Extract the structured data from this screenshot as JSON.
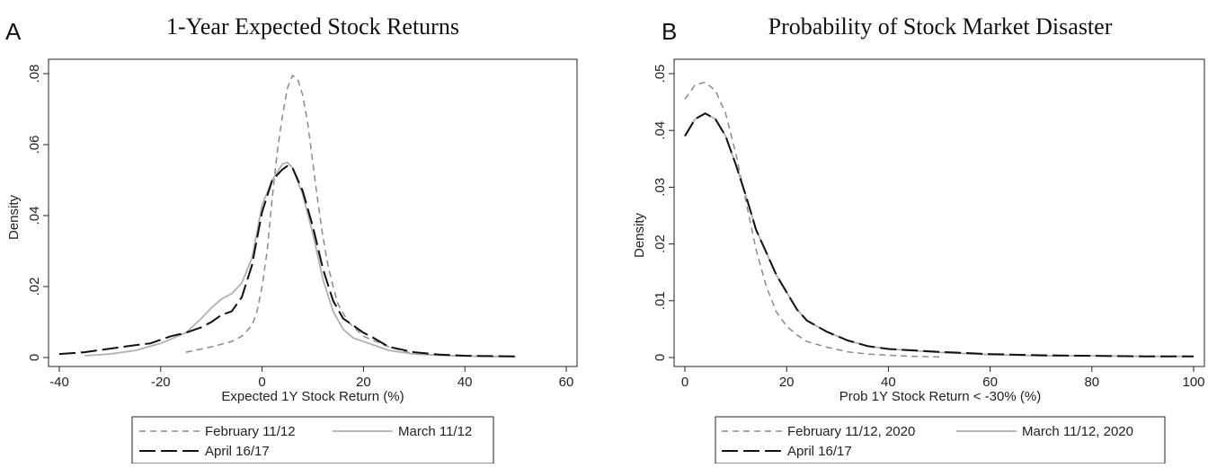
{
  "colors": {
    "february": "#8a8a8a",
    "march": "#b0b0b0",
    "april": "#111111"
  },
  "chart_data": [
    {
      "type": "line",
      "panel_letter": "A",
      "title": "1-Year Expected Stock Returns",
      "xlabel": "Expected 1Y Stock Return (%)",
      "ylabel": "Density",
      "xlim": [
        -40,
        60
      ],
      "ylim": [
        0,
        0.08
      ],
      "xticks": [
        "-40",
        "-20",
        "0",
        "20",
        "40",
        "60"
      ],
      "yticks": [
        "0",
        ".02",
        ".04",
        ".06",
        ".08"
      ],
      "grid": false,
      "legend_position": "bottom",
      "series": [
        {
          "name": "February 11/12",
          "style": "short-dash",
          "x": [
            -15,
            -10,
            -6,
            -4,
            -2,
            -1,
            0,
            1,
            2,
            3,
            4,
            5,
            6,
            7,
            8,
            9,
            10,
            11,
            12,
            13,
            14,
            15,
            17,
            20,
            25,
            30
          ],
          "y": [
            0.0015,
            0.003,
            0.0045,
            0.006,
            0.009,
            0.013,
            0.02,
            0.03,
            0.045,
            0.058,
            0.068,
            0.076,
            0.0795,
            0.0785,
            0.074,
            0.066,
            0.055,
            0.044,
            0.034,
            0.026,
            0.02,
            0.015,
            0.01,
            0.006,
            0.003,
            0.001
          ]
        },
        {
          "name": "March 11/12",
          "style": "solid",
          "x": [
            -35,
            -30,
            -25,
            -20,
            -15,
            -12,
            -10,
            -8,
            -6,
            -4,
            -2,
            0,
            2,
            4,
            5,
            6,
            8,
            10,
            12,
            14,
            16,
            18,
            20,
            25,
            30,
            35,
            40,
            45,
            50
          ],
          "y": [
            0.0005,
            0.001,
            0.002,
            0.004,
            0.007,
            0.011,
            0.014,
            0.0165,
            0.018,
            0.021,
            0.028,
            0.043,
            0.05,
            0.0545,
            0.055,
            0.0535,
            0.046,
            0.035,
            0.022,
            0.013,
            0.008,
            0.0055,
            0.0045,
            0.002,
            0.001,
            0.0006,
            0.0004,
            0.0003,
            0.0002
          ]
        },
        {
          "name": "April 16/17",
          "style": "long-dash",
          "x": [
            -40,
            -35,
            -30,
            -25,
            -22,
            -20,
            -18,
            -15,
            -12,
            -10,
            -8,
            -6,
            -4,
            -2,
            0,
            2,
            4,
            5,
            6,
            8,
            10,
            12,
            14,
            16,
            18,
            20,
            22,
            25,
            30,
            35,
            40,
            45,
            50
          ],
          "y": [
            0.001,
            0.0015,
            0.0025,
            0.0035,
            0.004,
            0.005,
            0.006,
            0.007,
            0.0085,
            0.01,
            0.012,
            0.013,
            0.017,
            0.026,
            0.041,
            0.05,
            0.053,
            0.054,
            0.0535,
            0.047,
            0.037,
            0.025,
            0.016,
            0.011,
            0.009,
            0.007,
            0.0055,
            0.003,
            0.0015,
            0.0008,
            0.0005,
            0.0004,
            0.0003
          ]
        }
      ]
    },
    {
      "type": "line",
      "panel_letter": "B",
      "title": "Probability of Stock Market Disaster",
      "xlabel": "Prob 1Y Stock Return < -30% (%)",
      "ylabel": "Density",
      "xlim": [
        0,
        100
      ],
      "ylim": [
        0,
        0.05
      ],
      "xticks": [
        "0",
        "20",
        "40",
        "60",
        "80",
        "100"
      ],
      "yticks": [
        "0",
        ".01",
        ".02",
        ".03",
        ".04",
        ".05"
      ],
      "grid": false,
      "legend_position": "bottom",
      "series": [
        {
          "name": "February 11/12, 2020",
          "style": "short-dash",
          "x": [
            0,
            2,
            4,
            6,
            8,
            10,
            12,
            14,
            16,
            18,
            20,
            22,
            24,
            28,
            32,
            36,
            40,
            45,
            50
          ],
          "y": [
            0.0455,
            0.048,
            0.0485,
            0.047,
            0.043,
            0.036,
            0.0275,
            0.019,
            0.0125,
            0.008,
            0.0055,
            0.004,
            0.0028,
            0.0018,
            0.001,
            0.0006,
            0.0004,
            0.0002,
            0.0001
          ]
        },
        {
          "name": "March 11/12, 2020",
          "style": "solid",
          "x": [
            0,
            2,
            4,
            6,
            8,
            10,
            12,
            14,
            16,
            18,
            20,
            22,
            24,
            28,
            32,
            36,
            40,
            50,
            60,
            70,
            80,
            90,
            100
          ],
          "y": [
            0.039,
            0.042,
            0.043,
            0.042,
            0.039,
            0.034,
            0.0285,
            0.0225,
            0.0185,
            0.0145,
            0.0115,
            0.0085,
            0.0065,
            0.0045,
            0.003,
            0.002,
            0.0015,
            0.0009,
            0.0005,
            0.0003,
            0.0003,
            0.0002,
            0.0002
          ]
        },
        {
          "name": "April 16/17",
          "style": "long-dash",
          "x": [
            0,
            2,
            4,
            6,
            8,
            10,
            12,
            14,
            16,
            18,
            20,
            22,
            24,
            28,
            32,
            36,
            40,
            50,
            60,
            70,
            80,
            90,
            100
          ],
          "y": [
            0.039,
            0.042,
            0.043,
            0.042,
            0.039,
            0.034,
            0.0285,
            0.0225,
            0.0185,
            0.0145,
            0.0115,
            0.0085,
            0.0065,
            0.0045,
            0.003,
            0.002,
            0.0015,
            0.001,
            0.0006,
            0.0004,
            0.0003,
            0.0002,
            0.0002
          ]
        }
      ]
    }
  ]
}
